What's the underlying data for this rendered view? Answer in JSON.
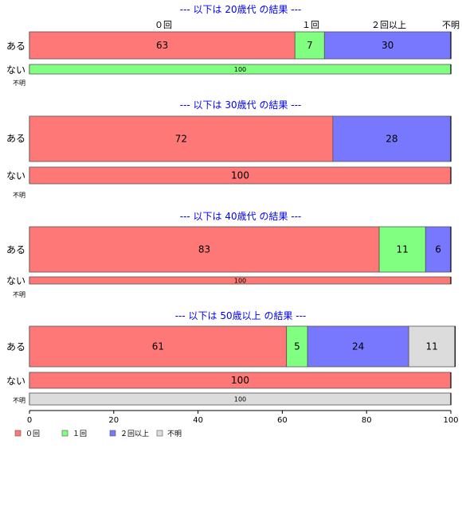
{
  "chart_data": {
    "type": "bar",
    "orientation": "horizontal",
    "stacked": true,
    "xlim": [
      0,
      100
    ],
    "xticks": [
      0,
      20,
      40,
      60,
      80,
      100
    ],
    "categories": [
      "０回",
      "１回",
      "２回以上",
      "不明"
    ],
    "colors": {
      "０回": "#ff7878",
      "１回": "#80ff80",
      "２回以上": "#7878ff",
      "不明": "#dcdcdc"
    },
    "legend_position": "bottom-left",
    "panels": [
      {
        "title": "--- 以下は 20歳代 の結果 ---",
        "show_headers": true,
        "rows": [
          {
            "label": "ある",
            "values": [
              63,
              7,
              30,
              0
            ]
          },
          {
            "label": "ない",
            "values": [
              0,
              100,
              0,
              0
            ]
          },
          {
            "label": "不明",
            "values": [
              0,
              0,
              0,
              0
            ]
          }
        ]
      },
      {
        "title": "--- 以下は 30歳代 の結果 ---",
        "rows": [
          {
            "label": "ある",
            "values": [
              72,
              0,
              28,
              0
            ]
          },
          {
            "label": "ない",
            "values": [
              100,
              0,
              0,
              0
            ]
          },
          {
            "label": "不明",
            "values": [
              0,
              0,
              0,
              0
            ]
          }
        ]
      },
      {
        "title": "--- 以下は 40歳代 の結果 ---",
        "rows": [
          {
            "label": "ある",
            "values": [
              83,
              11,
              6,
              0
            ]
          },
          {
            "label": "ない",
            "values": [
              100,
              0,
              0,
              0
            ]
          },
          {
            "label": "不明",
            "values": [
              0,
              0,
              0,
              0
            ]
          }
        ]
      },
      {
        "title": "--- 以下は 50歳以上 の結果 ---",
        "rows": [
          {
            "label": "ある",
            "values": [
              61,
              5,
              24,
              11
            ]
          },
          {
            "label": "ない",
            "values": [
              100,
              0,
              0,
              0
            ]
          },
          {
            "label": "不明",
            "values": [
              0,
              0,
              0,
              100
            ]
          }
        ]
      }
    ]
  }
}
